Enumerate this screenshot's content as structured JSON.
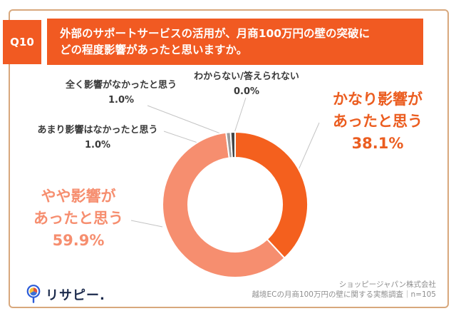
{
  "header": {
    "q_label": "Q10",
    "title_line1": "外部のサポートサービスの活用が、月商100万円の壁の突破に",
    "title_line2": "どの程度影響があったと思いますか。"
  },
  "chart_data": {
    "type": "pie",
    "subtype": "donut",
    "title": "外部のサポートサービスの活用が、月商100万円の壁の突破にどの程度影響があったと思いますか。",
    "unit": "%",
    "start_angle_deg": 0,
    "direction": "clockwise",
    "legend_position": "callouts",
    "segments": [
      {
        "label": "かなり影響があったと思う",
        "value": 38.1,
        "pct_text": "38.1%",
        "color": "#F4601E",
        "callout_lines": [
          "かなり影響が",
          "あったと思う"
        ]
      },
      {
        "label": "やや影響があったと思う",
        "value": 59.9,
        "pct_text": "59.9%",
        "color": "#F68E6F",
        "callout_lines": [
          "やや影響が",
          "あったと思う"
        ]
      },
      {
        "label": "あまり影響はなかったと思う",
        "value": 1.0,
        "pct_text": "1.0%",
        "color": "#9B9B9B"
      },
      {
        "label": "全く影響がなかったと思う",
        "value": 1.0,
        "pct_text": "1.0%",
        "color": "#454545"
      },
      {
        "label": "わからない/答えられない",
        "value": 0.0,
        "pct_text": "0.0%",
        "color": "#C9C9C9"
      }
    ]
  },
  "footer": {
    "logo_text": "リサピー.",
    "credit_line1": "ショッピージャパン株式会社",
    "credit_line2": "越境ECの月商100万円の壁に関する実態調査｜n=105"
  },
  "colors": {
    "brand_orange": "#F15A22",
    "salmon": "#F68E6F",
    "card_border": "#D8A87D",
    "callout_text": "#3A3A3A",
    "credit_text": "#8E8E8E",
    "logo_navy": "#1B2A4C",
    "leader_line": "#C4C4C4"
  }
}
